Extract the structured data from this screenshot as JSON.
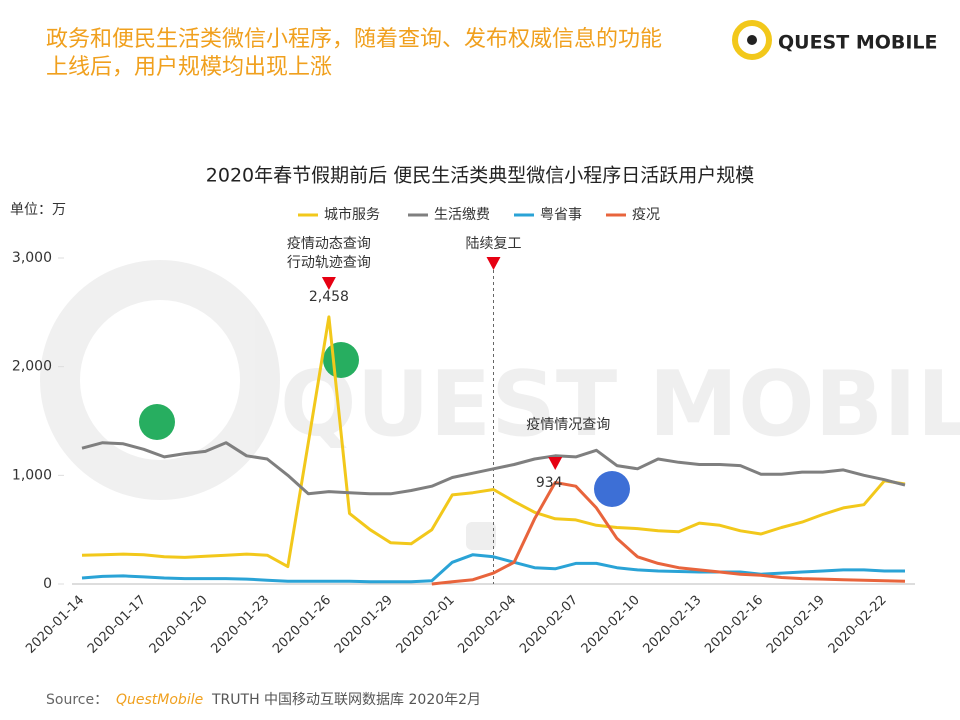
{
  "header": {
    "title_lines": [
      "政务和便民生活类微信小程序，随着查询、发布权威信息的功能",
      "上线后，用户规模均出现上涨"
    ],
    "logo": "QUEST MOBILE"
  },
  "chart_data": {
    "type": "line",
    "title": "2020年春节假期前后 便民生活类典型微信小程序日活跃用户规模",
    "unit_label": "单位：万",
    "categories": [
      "2020-01-14",
      null,
      null,
      "2020-01-17",
      null,
      null,
      "2020-01-20",
      null,
      null,
      "2020-01-23",
      null,
      null,
      "2020-01-26",
      null,
      null,
      "2020-01-29",
      null,
      null,
      "2020-02-01",
      null,
      null,
      "2020-02-04",
      null,
      null,
      "2020-02-07",
      null,
      null,
      "2020-02-10",
      null,
      null,
      "2020-02-13",
      null,
      null,
      "2020-02-16",
      null,
      null,
      "2020-02-19",
      null,
      null,
      "2020-02-22",
      null
    ],
    "ylim": [
      0,
      3000
    ],
    "yticks": [
      0,
      {
        "value": 1000,
        "label": "1,000"
      },
      {
        "value": 2000,
        "label": "2,000"
      },
      {
        "value": 3000,
        "label": "3,000"
      }
    ],
    "series": [
      {
        "name": "城市服务",
        "color": "#f2c81b",
        "values": [
          265,
          270,
          275,
          270,
          250,
          245,
          255,
          265,
          275,
          265,
          160,
          1300,
          2458,
          650,
          500,
          380,
          370,
          500,
          820,
          840,
          870,
          760,
          660,
          600,
          590,
          540,
          520,
          510,
          490,
          480,
          560,
          540,
          490,
          460,
          520,
          570,
          640,
          700,
          730,
          950,
          920
        ],
        "value_labels": [
          null,
          null,
          null,
          null,
          null,
          null,
          null,
          null,
          null,
          null,
          null,
          null,
          "2,458",
          null,
          null,
          null,
          null,
          null,
          null,
          null,
          null,
          null,
          null,
          null,
          null,
          null,
          null,
          null,
          null,
          null,
          null,
          null,
          null,
          null,
          null,
          null,
          null,
          null,
          null,
          null,
          null
        ]
      },
      {
        "name": "生活缴费",
        "color": "#7f7f7f",
        "values": [
          1250,
          1300,
          1290,
          1240,
          1170,
          1200,
          1220,
          1300,
          1180,
          1150,
          1000,
          830,
          850,
          840,
          830,
          830,
          860,
          900,
          980,
          1020,
          1060,
          1100,
          1150,
          1180,
          1170,
          1230,
          1090,
          1060,
          1150,
          1120,
          1100,
          1100,
          1090,
          1010,
          1010,
          1030,
          1030,
          1050,
          1000,
          960,
          910
        ]
      },
      {
        "name": "粤省事",
        "color": "#2aa3d6",
        "values": [
          55,
          70,
          75,
          65,
          55,
          50,
          50,
          50,
          45,
          35,
          25,
          25,
          25,
          25,
          20,
          20,
          20,
          30,
          200,
          270,
          250,
          200,
          150,
          140,
          190,
          190,
          150,
          130,
          120,
          115,
          110,
          110,
          110,
          90,
          100,
          110,
          120,
          130,
          130,
          120,
          120
        ]
      },
      {
        "name": "疫况",
        "color": "#e8643c",
        "values": [
          null,
          null,
          null,
          null,
          null,
          null,
          null,
          null,
          null,
          null,
          null,
          null,
          null,
          null,
          null,
          null,
          null,
          0,
          20,
          40,
          100,
          200,
          600,
          934,
          900,
          700,
          420,
          250,
          190,
          150,
          130,
          110,
          90,
          80,
          60,
          50,
          45,
          40,
          35,
          30,
          25
        ]
      }
    ],
    "annotations": [
      [
        "疫情动态查询",
        "行动轨迹查询"
      ],
      [
        "陆续复工"
      ],
      [
        "疫情情况查询"
      ]
    ]
  },
  "footer": {
    "source": "Source：",
    "brand": "QuestMobile",
    "rest": "TRUTH 中国移动互联网数据库 2020年2月"
  }
}
